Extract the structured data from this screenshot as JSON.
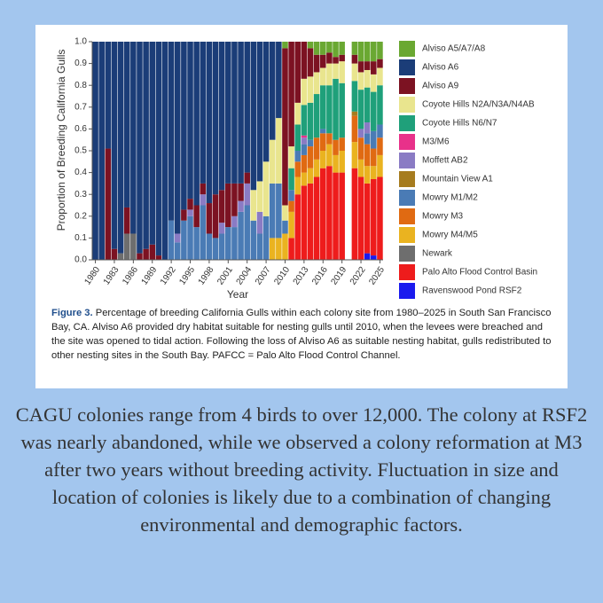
{
  "chart_data": {
    "type": "stacked_bar",
    "x_label": "Year",
    "y_label": "Proportion of Breeding California Gulls",
    "x": [
      1980,
      1981,
      1982,
      1983,
      1984,
      1985,
      1986,
      1987,
      1988,
      1989,
      1990,
      1991,
      1992,
      1993,
      1994,
      1995,
      1996,
      1997,
      1998,
      1999,
      2000,
      2001,
      2002,
      2003,
      2004,
      2005,
      2006,
      2007,
      2008,
      2009,
      2010,
      2011,
      2012,
      2013,
      2014,
      2015,
      2016,
      2017,
      2018,
      2019,
      2020,
      2021,
      2022,
      2023,
      2024,
      2025
    ],
    "xlim": [
      1979.5,
      2025.5
    ],
    "xticks": [
      1980,
      1983,
      1986,
      1989,
      1992,
      1995,
      1998,
      2001,
      2004,
      2007,
      2010,
      2013,
      2016,
      2019,
      2022,
      2025
    ],
    "ylim": [
      0,
      1
    ],
    "yticks": [
      {
        "value": 0,
        "label": "0.0"
      },
      0.1,
      0.2,
      0.3,
      0.4,
      0.5,
      0.6,
      0.7,
      0.8,
      0.9,
      {
        "value": 1,
        "label": "1.0"
      }
    ],
    "series": [
      {
        "name": "Alviso A5/A7/A8",
        "color": "#6aa832",
        "values": [
          0,
          0,
          0,
          0,
          0,
          0,
          0,
          0,
          0,
          0,
          0,
          0,
          0,
          0,
          0,
          0,
          0,
          0,
          0,
          0,
          0,
          0,
          0,
          0,
          0,
          0,
          0,
          0,
          0,
          0,
          0.03,
          0,
          0,
          0,
          0.03,
          0.06,
          0.06,
          0.05,
          0.07,
          0.06,
          null,
          0.06,
          0.09,
          0.09,
          0.09,
          0.08
        ]
      },
      {
        "name": "Alviso A6",
        "color": "#1b3d78",
        "values": [
          1,
          1,
          0.49,
          0.95,
          0.97,
          0.76,
          0.88,
          0.97,
          0.95,
          0.93,
          0.98,
          1,
          0.82,
          0.88,
          0.77,
          0.72,
          0.75,
          0.65,
          0.74,
          0.7,
          0.68,
          0.65,
          0.65,
          0.65,
          0.6,
          0.68,
          0.64,
          0.55,
          0.45,
          0.35,
          0,
          0,
          0,
          0,
          0,
          0,
          0,
          0,
          0,
          0,
          null,
          0,
          0,
          0,
          0,
          0
        ]
      },
      {
        "name": "Alviso A9",
        "color": "#7c1222",
        "values": [
          0,
          0,
          0.51,
          0.05,
          0,
          0.12,
          0,
          0.03,
          0.05,
          0.07,
          0.02,
          0,
          0,
          0,
          0.05,
          0.05,
          0.1,
          0.05,
          0.14,
          0.2,
          0.15,
          0.2,
          0.15,
          0.08,
          0.05,
          0,
          0,
          0,
          0,
          0,
          0.72,
          0.48,
          0.28,
          0.17,
          0.13,
          0.08,
          0.06,
          0.05,
          0.03,
          0.03,
          null,
          0.04,
          0.05,
          0.04,
          0.06,
          0.04
        ]
      },
      {
        "name": "Coyote Hills N2A/N3A/N4AB",
        "color": "#e9e58e",
        "values": [
          0,
          0,
          0,
          0,
          0,
          0,
          0,
          0,
          0,
          0,
          0,
          0,
          0,
          0,
          0,
          0,
          0,
          0,
          0,
          0,
          0,
          0,
          0,
          0,
          0,
          0.14,
          0.14,
          0.25,
          0.2,
          0.3,
          0.07,
          0.1,
          0.1,
          0.12,
          0.12,
          0.1,
          0.08,
          0.1,
          0.07,
          0.1,
          null,
          0.08,
          0.08,
          0.08,
          0.08,
          0.08
        ]
      },
      {
        "name": "Coyote Hills N6/N7",
        "color": "#1fa07a",
        "values": [
          0,
          0,
          0,
          0,
          0,
          0,
          0,
          0,
          0,
          0,
          0,
          0,
          0,
          0,
          0,
          0,
          0,
          0,
          0,
          0,
          0,
          0,
          0,
          0,
          0,
          0,
          0,
          0,
          0,
          0,
          0,
          0.1,
          0.12,
          0.14,
          0.17,
          0.2,
          0.2,
          0.22,
          0.28,
          0.25,
          null,
          0.14,
          0.18,
          0.16,
          0.18,
          0.18
        ]
      },
      {
        "name": "M3/M6",
        "color": "#e8318a",
        "values": [
          0,
          0,
          0,
          0,
          0,
          0,
          0,
          0,
          0,
          0,
          0,
          0,
          0,
          0,
          0,
          0,
          0,
          0,
          0,
          0,
          0,
          0,
          0,
          0,
          0,
          0,
          0,
          0,
          0,
          0,
          0,
          0,
          0,
          0.01,
          0,
          0,
          0,
          0,
          0,
          0,
          null,
          0,
          0,
          0,
          0,
          0
        ]
      },
      {
        "name": "Moffett AB2",
        "color": "#8a7bc4",
        "values": [
          0,
          0,
          0,
          0,
          0,
          0,
          0,
          0,
          0,
          0,
          0,
          0,
          0,
          0.04,
          0,
          0.03,
          0,
          0.05,
          0,
          0,
          0.05,
          0,
          0.05,
          0.05,
          0.1,
          0,
          0.1,
          0,
          0,
          0,
          0,
          0,
          0,
          0.03,
          0,
          0,
          0,
          0,
          0,
          0,
          null,
          0,
          0.04,
          0.05,
          0,
          0
        ]
      },
      {
        "name": "Mountain View A1",
        "color": "#a67c1f",
        "values": [
          0,
          0,
          0,
          0,
          0,
          0,
          0,
          0,
          0,
          0,
          0,
          0,
          0,
          0,
          0,
          0,
          0,
          0,
          0,
          0,
          0,
          0,
          0,
          0,
          0,
          0,
          0,
          0,
          0,
          0,
          0,
          0,
          0,
          0,
          0,
          0,
          0,
          0,
          0,
          0,
          null,
          0.02,
          0,
          0,
          0,
          0
        ]
      },
      {
        "name": "Mowry M1/M2",
        "color": "#4a7bb5",
        "values": [
          0,
          0,
          0,
          0,
          0,
          0,
          0,
          0,
          0,
          0,
          0,
          0,
          0.18,
          0.08,
          0.18,
          0.2,
          0.15,
          0.25,
          0.12,
          0.1,
          0.12,
          0.15,
          0.15,
          0.22,
          0.25,
          0.18,
          0.12,
          0.2,
          0.25,
          0.25,
          0.06,
          0.05,
          0.05,
          0.05,
          0.03,
          0,
          0.02,
          0,
          0,
          0,
          null,
          0,
          0,
          0.05,
          0.08,
          0.06
        ]
      },
      {
        "name": "Mowry M3",
        "color": "#e06a12",
        "values": [
          0,
          0,
          0,
          0,
          0,
          0,
          0,
          0,
          0,
          0,
          0,
          0,
          0,
          0,
          0,
          0,
          0,
          0,
          0,
          0,
          0,
          0,
          0,
          0,
          0,
          0,
          0,
          0,
          0,
          0,
          0,
          0.05,
          0.07,
          0.08,
          0.1,
          0.1,
          0.08,
          0.05,
          0.07,
          0.06,
          null,
          0.12,
          0.1,
          0.1,
          0.08,
          0.08
        ]
      },
      {
        "name": "Mowry M4/M5",
        "color": "#eab320",
        "values": [
          0,
          0,
          0,
          0,
          0,
          0,
          0,
          0,
          0,
          0,
          0,
          0,
          0,
          0,
          0,
          0,
          0,
          0,
          0,
          0,
          0,
          0,
          0,
          0,
          0,
          0,
          0,
          0,
          0.1,
          0.1,
          0.12,
          0.12,
          0.08,
          0.06,
          0.07,
          0.08,
          0.08,
          0.1,
          0.08,
          0.1,
          null,
          0.12,
          0.08,
          0.08,
          0.06,
          0.1
        ]
      },
      {
        "name": "Newark",
        "color": "#6e6e6e",
        "values": [
          0,
          0,
          0,
          0,
          0.03,
          0.12,
          0.12,
          0,
          0,
          0,
          0,
          0,
          0,
          0,
          0,
          0,
          0,
          0,
          0,
          0,
          0,
          0,
          0,
          0,
          0,
          0,
          0,
          0,
          0,
          0,
          0,
          0,
          0,
          0,
          0,
          0,
          0,
          0,
          0,
          0,
          null,
          0,
          0,
          0,
          0,
          0
        ]
      },
      {
        "name": "Palo Alto Flood Control Basin",
        "color": "#ee1c1c",
        "values": [
          0,
          0,
          0,
          0,
          0,
          0,
          0,
          0,
          0,
          0,
          0,
          0,
          0,
          0,
          0,
          0,
          0,
          0,
          0,
          0,
          0,
          0,
          0,
          0,
          0,
          0,
          0,
          0,
          0,
          0,
          0,
          0.1,
          0.3,
          0.34,
          0.35,
          0.38,
          0.42,
          0.43,
          0.4,
          0.4,
          null,
          0.42,
          0.38,
          0.32,
          0.35,
          0.38
        ]
      },
      {
        "name": "Ravenswood Pond RSF2",
        "color": "#1a1aee",
        "values": [
          0,
          0,
          0,
          0,
          0,
          0,
          0,
          0,
          0,
          0,
          0,
          0,
          0,
          0,
          0,
          0,
          0,
          0,
          0,
          0,
          0,
          0,
          0,
          0,
          0,
          0,
          0,
          0,
          0,
          0,
          0,
          0,
          0,
          0,
          0,
          0,
          0,
          0,
          0,
          0,
          null,
          0,
          0,
          0.03,
          0.02,
          0
        ]
      }
    ]
  },
  "caption": {
    "label": "Figure 3.",
    "text": "Percentage of breeding California Gulls within each colony site from 1980–2025 in South San Francisco Bay, CA. Alviso A6 provided dry habitat suitable for nesting gulls until 2010, when the levees were breached and the site was opened to tidal action. Following the loss of Alviso A6 as suitable nesting habitat, gulls redistributed to other nesting sites in the South Bay. PAFCC = Palo Alto Flood Control Channel."
  },
  "body": "CAGU colonies range from 4 birds to over 12,000. The colony at RSF2 was nearly abandoned, while we observed a colony reformation at M3 after two years without breeding activity. Fluctuation in size and location of colonies is likely due to a combination of changing environmental and demographic factors."
}
